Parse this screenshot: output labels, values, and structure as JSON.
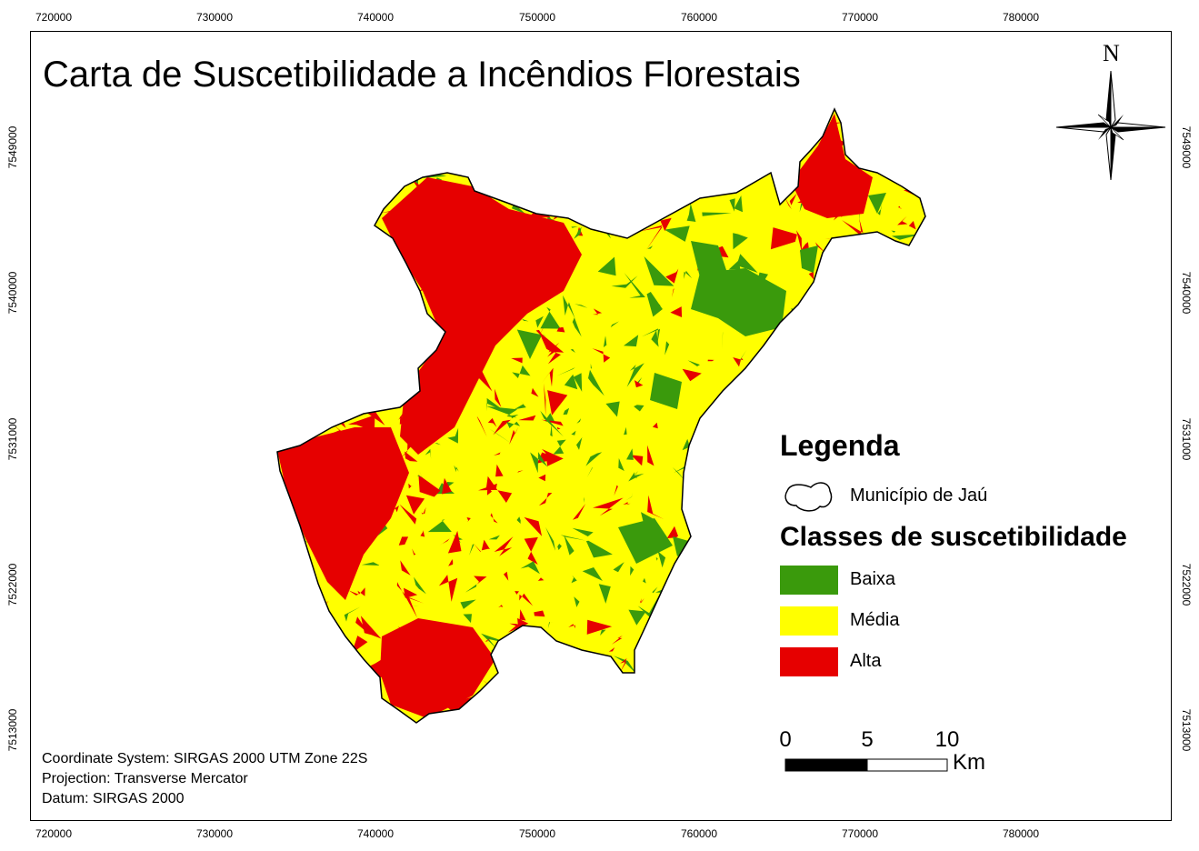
{
  "title": "Carta de Suscetibilidade a Incêndios Florestais",
  "axes": {
    "x_ticks": [
      "720000",
      "730000",
      "740000",
      "750000",
      "760000",
      "770000",
      "780000"
    ],
    "y_ticks": [
      "7549000",
      "7540000",
      "7531000",
      "7522000",
      "7513000"
    ]
  },
  "north_arrow": {
    "label": "N",
    "icon": "compass-rose-icon"
  },
  "legend": {
    "title": "Legenda",
    "boundary_label": "Município de Jaú",
    "classes_title": "Classes de suscetibilidade",
    "classes": [
      {
        "label": "Baixa",
        "color": "#3a9a0c"
      },
      {
        "label": "Média",
        "color": "#ffff00"
      },
      {
        "label": "Alta",
        "color": "#e60000"
      }
    ]
  },
  "scale_bar": {
    "ticks": [
      "0",
      "5",
      "10"
    ],
    "unit": "Km"
  },
  "metadata": {
    "coordinate_system": "Coordinate System: SIRGAS 2000 UTM Zone 22S",
    "projection": "Projection: Transverse Mercator",
    "datum": "Datum: SIRGAS 2000"
  }
}
